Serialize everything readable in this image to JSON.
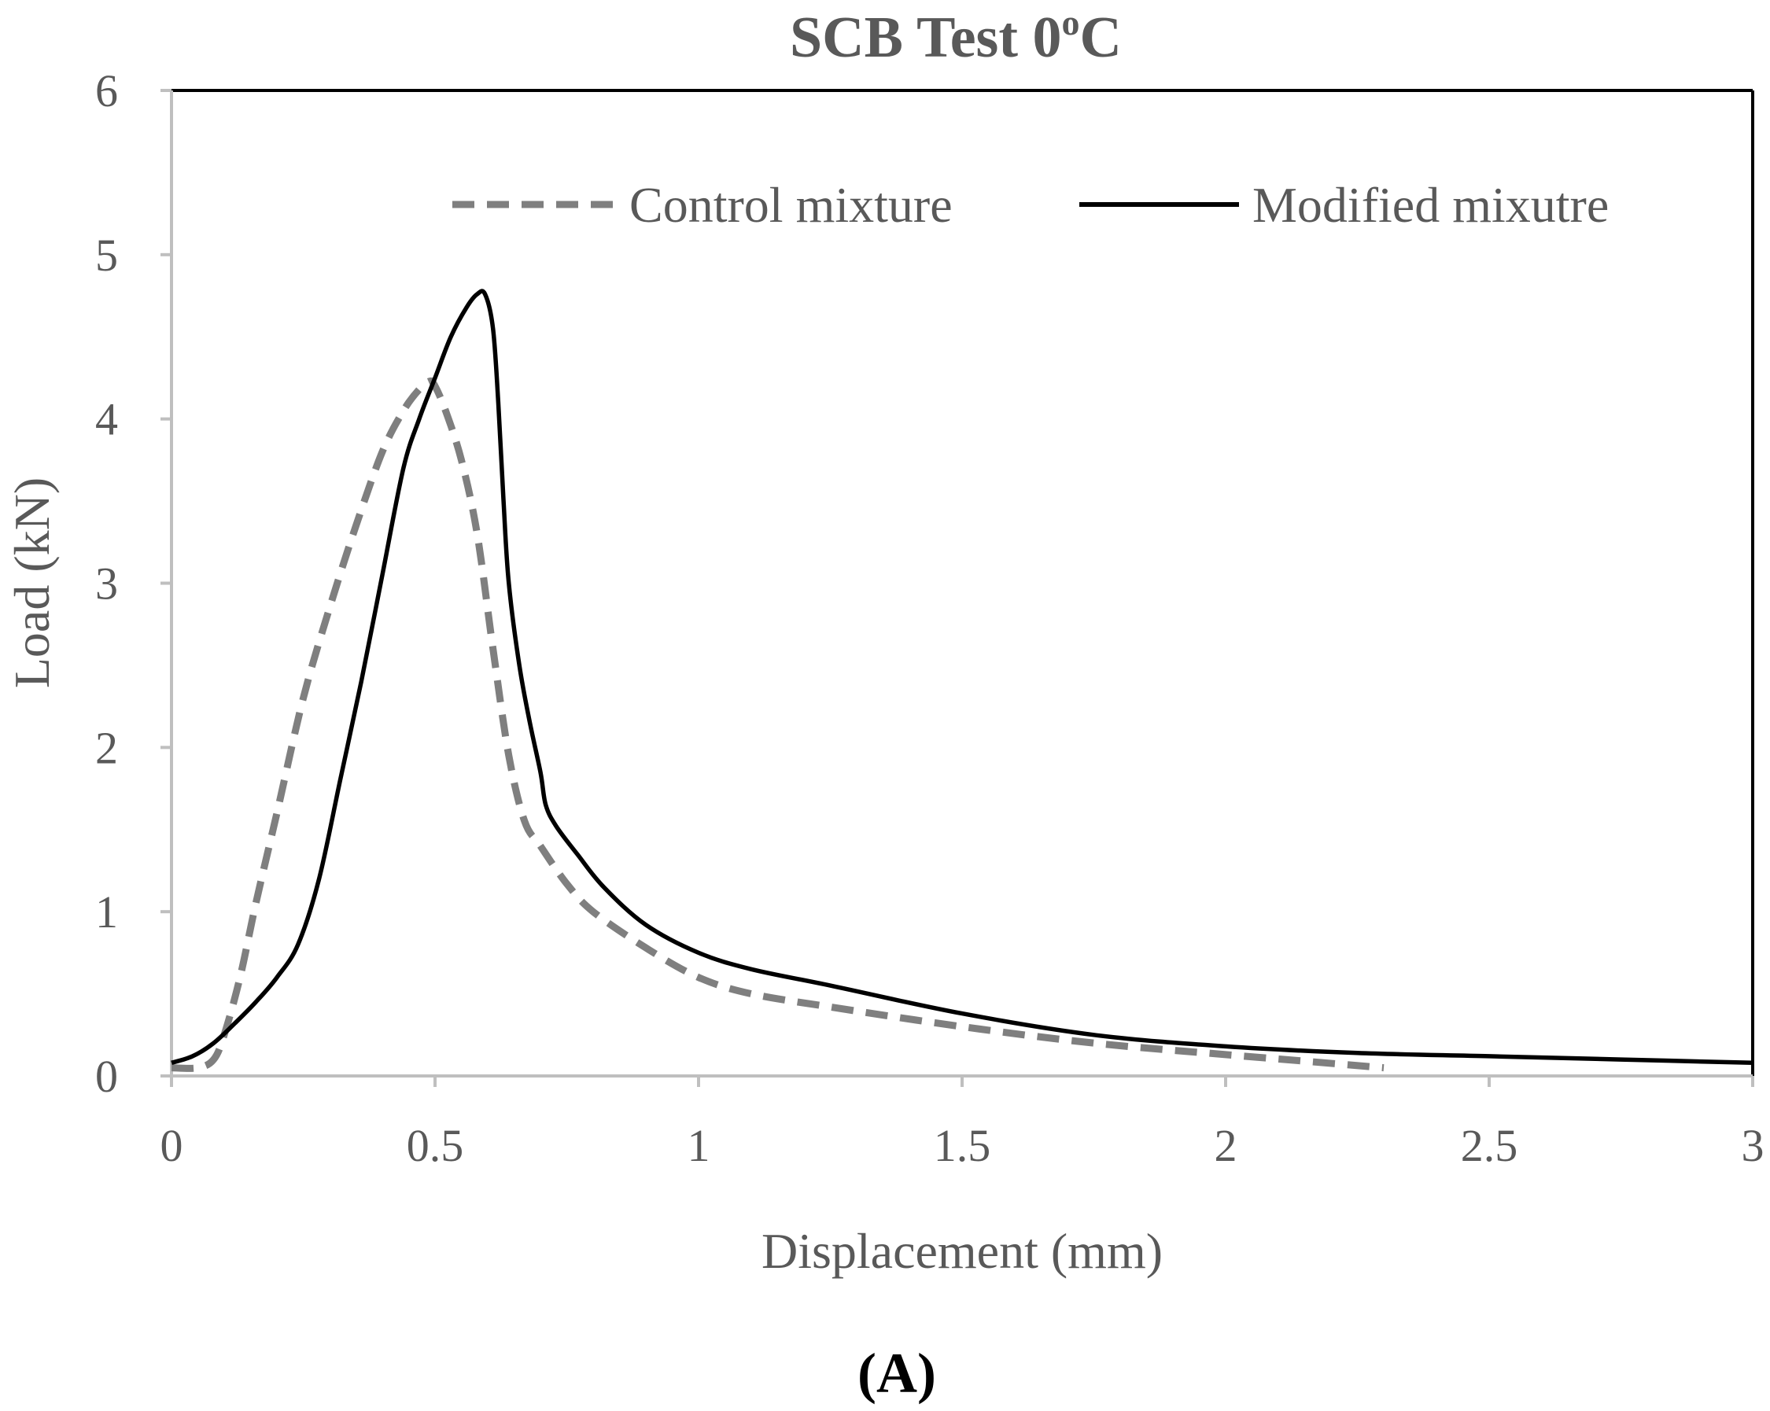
{
  "chart_data": {
    "type": "line",
    "title_main": "SCB Test 0",
    "title_sup": "o",
    "title_tail": "C",
    "xlabel": "Displacement (mm)",
    "ylabel": "Load (kN)",
    "xlim": [
      0,
      3
    ],
    "ylim": [
      0,
      6
    ],
    "xticks": [
      0,
      0.5,
      1,
      1.5,
      2,
      2.5,
      3
    ],
    "xtick_labels": [
      "0",
      "0.5",
      "1",
      "1.5",
      "2",
      "2.5",
      "3"
    ],
    "yticks": [
      0,
      1,
      2,
      3,
      4,
      5,
      6
    ],
    "ytick_labels": [
      "0",
      "1",
      "2",
      "3",
      "4",
      "5",
      "6"
    ],
    "legend_position": "top-right",
    "panel_label": "(A)",
    "series": [
      {
        "name": "Control mixture",
        "style": "dashed",
        "color": "#7f7f7f",
        "x": [
          0,
          0.05,
          0.08,
          0.1,
          0.13,
          0.16,
          0.2,
          0.25,
          0.3,
          0.35,
          0.4,
          0.44,
          0.47,
          0.49,
          0.5,
          0.52,
          0.55,
          0.58,
          0.61,
          0.64,
          0.67,
          0.7,
          0.75,
          0.8,
          0.9,
          1.0,
          1.1,
          1.25,
          1.5,
          1.75,
          2.0,
          2.15,
          2.3
        ],
        "y": [
          0.05,
          0.05,
          0.1,
          0.25,
          0.6,
          1.05,
          1.6,
          2.3,
          2.85,
          3.35,
          3.8,
          4.05,
          4.18,
          4.23,
          4.2,
          4.05,
          3.75,
          3.3,
          2.6,
          1.95,
          1.55,
          1.4,
          1.17,
          1.0,
          0.78,
          0.6,
          0.5,
          0.42,
          0.3,
          0.2,
          0.13,
          0.09,
          0.05
        ]
      },
      {
        "name": "Modified mixutre",
        "style": "solid",
        "color": "#000000",
        "x": [
          0,
          0.04,
          0.08,
          0.12,
          0.16,
          0.2,
          0.24,
          0.28,
          0.32,
          0.36,
          0.4,
          0.44,
          0.47,
          0.5,
          0.53,
          0.56,
          0.58,
          0.595,
          0.61,
          0.62,
          0.63,
          0.64,
          0.66,
          0.68,
          0.7,
          0.71,
          0.73,
          0.77,
          0.82,
          0.9,
          1.0,
          1.1,
          1.25,
          1.5,
          1.75,
          2.0,
          2.25,
          2.5,
          2.75,
          3.0
        ],
        "y": [
          0.08,
          0.12,
          0.2,
          0.32,
          0.45,
          0.6,
          0.8,
          1.2,
          1.8,
          2.4,
          3.05,
          3.7,
          4.0,
          4.25,
          4.5,
          4.68,
          4.76,
          4.76,
          4.55,
          4.1,
          3.5,
          3.0,
          2.5,
          2.15,
          1.85,
          1.65,
          1.52,
          1.35,
          1.15,
          0.92,
          0.75,
          0.65,
          0.55,
          0.38,
          0.25,
          0.18,
          0.14,
          0.12,
          0.1,
          0.08
        ]
      }
    ]
  }
}
